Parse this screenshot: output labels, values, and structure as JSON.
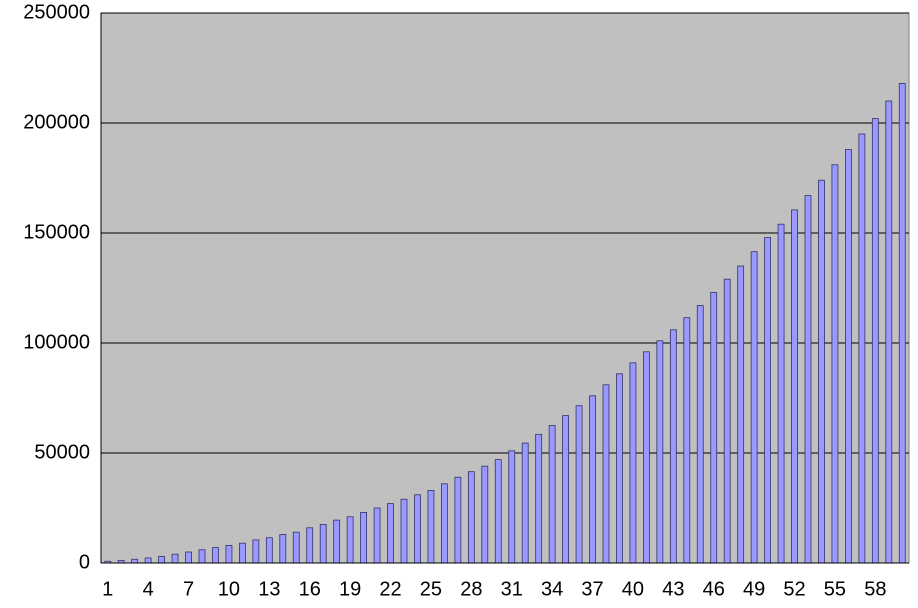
{
  "chart_data": {
    "type": "bar",
    "categories": [
      "1",
      null,
      null,
      "4",
      null,
      null,
      "7",
      null,
      null,
      "10",
      null,
      null,
      "13",
      null,
      null,
      "16",
      null,
      null,
      "19",
      null,
      null,
      "22",
      null,
      null,
      "25",
      null,
      null,
      "28",
      null,
      null,
      "31",
      null,
      null,
      "34",
      null,
      null,
      "37",
      null,
      null,
      "40",
      null,
      null,
      "43",
      null,
      null,
      "46",
      null,
      null,
      "49",
      null,
      null,
      "52",
      null,
      null,
      "55",
      null,
      null,
      "58",
      null,
      null
    ],
    "values": [
      800,
      1200,
      1700,
      2300,
      3000,
      4000,
      5000,
      6000,
      7000,
      8000,
      9000,
      10500,
      11500,
      13000,
      14000,
      16000,
      17500,
      19500,
      21000,
      23000,
      25000,
      27000,
      29000,
      31000,
      33000,
      36000,
      39000,
      41500,
      44000,
      47000,
      51000,
      54500,
      58500,
      62500,
      67000,
      71500,
      76000,
      81000,
      86000,
      91000,
      96000,
      101000,
      106000,
      111500,
      117000,
      123000,
      129000,
      135000,
      141500,
      148000,
      154000,
      160500,
      167000,
      174000,
      181000,
      188000,
      195000,
      202000,
      210000,
      218000
    ],
    "color": "#9999ff",
    "ylim": [
      0,
      250000
    ],
    "yticks": [
      0,
      50000,
      100000,
      150000,
      200000,
      250000
    ],
    "grid": true
  }
}
